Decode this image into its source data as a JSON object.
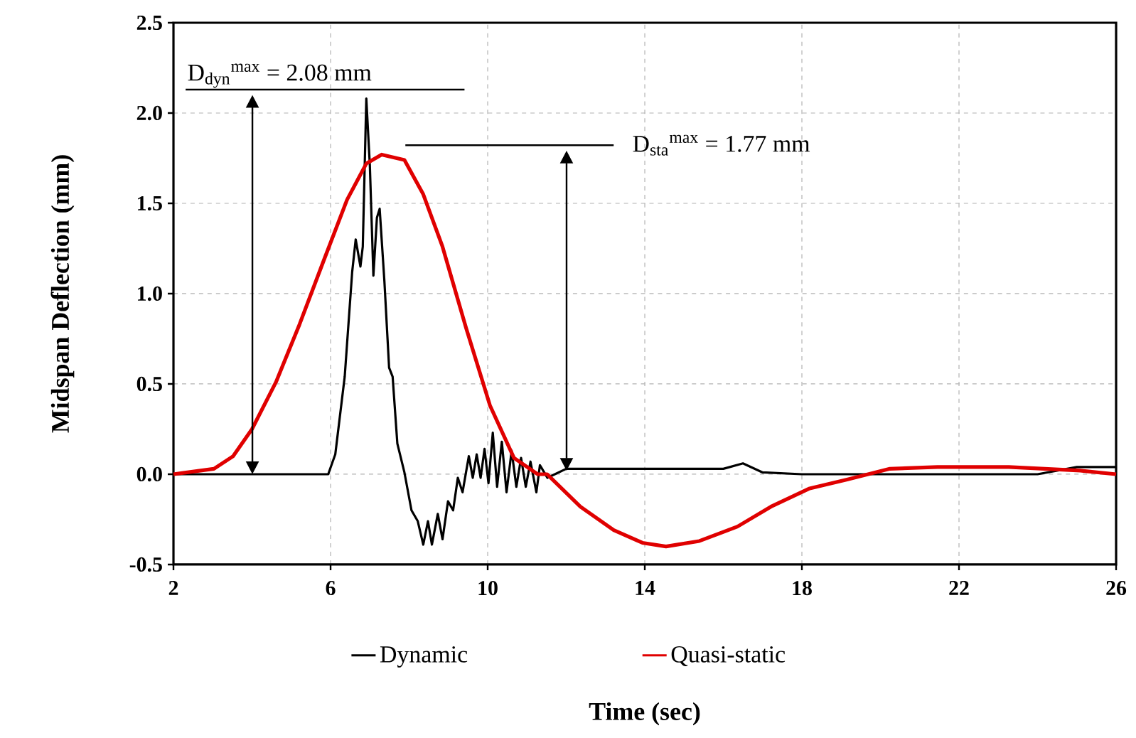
{
  "chart_data": {
    "type": "line",
    "xlabel": "Time (sec)",
    "ylabel": "Midspan Deflection (mm)",
    "xlim": [
      2,
      26
    ],
    "xticks": [
      2,
      6,
      10,
      14,
      18,
      22,
      26
    ],
    "ylim": [
      -0.5,
      2.5
    ],
    "yticks": [
      -0.5,
      {
        "value": 0,
        "label": "0.0"
      },
      0.5,
      {
        "value": 1,
        "label": "1.0"
      },
      1.5,
      {
        "value": 2,
        "label": "2.0"
      },
      2.5
    ],
    "grid": true,
    "legend": "bottom",
    "line_style": "solid",
    "marker": "none",
    "annotations": [
      {
        "text": "D$_{dyn}$$^{max}$ = 2.08 mm",
        "x": 6.91,
        "y": 2.08
      },
      "D$_{sta}$$^{max}$ = 1.77 mm"
    ],
    "series": [
      {
        "name": "Dynamic",
        "color": "#000000",
        "x": [
          2,
          4,
          5.94,
          6.12,
          6.36,
          6.55,
          6.64,
          6.76,
          6.82,
          6.91,
          7.0,
          7.09,
          7.18,
          7.25,
          7.37,
          7.49,
          7.58,
          7.7,
          7.88,
          8.06,
          8.22,
          8.36,
          8.48,
          8.58,
          8.73,
          8.85,
          8.99,
          9.12,
          9.24,
          9.36,
          9.52,
          9.62,
          9.72,
          9.82,
          9.92,
          10.02,
          10.13,
          10.24,
          10.36,
          10.48,
          10.61,
          10.73,
          10.85,
          10.97,
          11.09,
          11.24,
          11.33,
          11.52,
          12,
          13,
          14,
          15,
          16,
          16.5,
          17,
          18,
          20,
          22,
          24,
          25,
          26
        ],
        "values": [
          0,
          0,
          0,
          0.11,
          0.54,
          1.12,
          1.3,
          1.15,
          1.26,
          2.08,
          1.71,
          1.1,
          1.42,
          1.47,
          1.07,
          0.59,
          0.54,
          0.17,
          0.01,
          -0.2,
          -0.26,
          -0.39,
          -0.26,
          -0.39,
          -0.22,
          -0.36,
          -0.15,
          -0.2,
          -0.02,
          -0.1,
          0.1,
          -0.02,
          0.11,
          -0.02,
          0.14,
          -0.05,
          0.23,
          -0.07,
          0.18,
          -0.1,
          0.13,
          -0.07,
          0.09,
          -0.07,
          0.07,
          -0.1,
          0.05,
          -0.02,
          0.03,
          0.03,
          0.03,
          0.03,
          0.03,
          0.06,
          0.01,
          0,
          0,
          0,
          0,
          0.04,
          0.04
        ]
      },
      {
        "name": "Quasi-static",
        "color": "#e00000",
        "x": [
          2,
          3.03,
          3.52,
          4,
          4.61,
          5.21,
          5.82,
          6.42,
          6.91,
          7.3,
          7.88,
          8.36,
          8.85,
          9.45,
          10.06,
          10.67,
          11.27,
          11.51,
          12.36,
          13.21,
          13.94,
          14.54,
          15.39,
          16.36,
          17.21,
          18.18,
          19.15,
          20.24,
          21.45,
          23.27,
          25.09,
          26
        ],
        "values": [
          0,
          0.03,
          0.1,
          0.25,
          0.51,
          0.83,
          1.18,
          1.52,
          1.72,
          1.77,
          1.74,
          1.55,
          1.26,
          0.81,
          0.38,
          0.09,
          0,
          0,
          -0.18,
          -0.31,
          -0.38,
          -0.4,
          -0.37,
          -0.29,
          -0.18,
          -0.08,
          -0.03,
          0.03,
          0.04,
          0.04,
          0.02,
          0
        ]
      }
    ]
  }
}
